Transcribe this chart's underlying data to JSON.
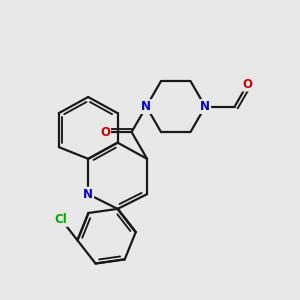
{
  "background_color": "#e8e8e8",
  "bond_color": "#1a1a1a",
  "N_color": "#0000cc",
  "O_color": "#cc0000",
  "Cl_color": "#00aa00",
  "line_width": 1.6,
  "figsize": [
    3.0,
    3.0
  ],
  "dpi": 100,
  "xlim": [
    0,
    10
  ],
  "ylim": [
    0,
    10
  ]
}
